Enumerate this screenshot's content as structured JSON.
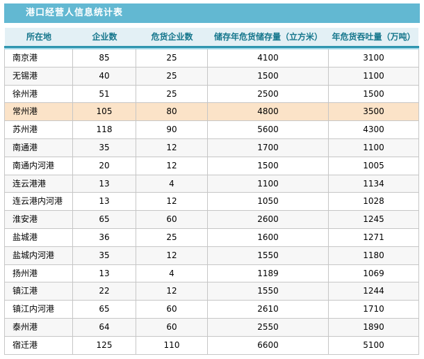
{
  "title": "港口经营人信息统计表",
  "table": {
    "columns": [
      "所在地",
      "企业数",
      "危货企业数",
      "储存年危货储存量（立方米）",
      "年危货吞吐量（万吨）"
    ],
    "rows": [
      {
        "cells": [
          "南京港",
          "85",
          "25",
          "4100",
          "3100"
        ],
        "highlighted": false
      },
      {
        "cells": [
          "无锡港",
          "40",
          "25",
          "1500",
          "1100"
        ],
        "highlighted": false
      },
      {
        "cells": [
          "徐州港",
          "51",
          "25",
          "2500",
          "1500"
        ],
        "highlighted": false
      },
      {
        "cells": [
          "常州港",
          "105",
          "80",
          "4800",
          "3500"
        ],
        "highlighted": true
      },
      {
        "cells": [
          "苏州港",
          "118",
          "90",
          "5600",
          "4300"
        ],
        "highlighted": false
      },
      {
        "cells": [
          "南通港",
          "35",
          "12",
          "1700",
          "1100"
        ],
        "highlighted": false
      },
      {
        "cells": [
          "南通内河港",
          "20",
          "12",
          "1500",
          "1005"
        ],
        "highlighted": false
      },
      {
        "cells": [
          "连云港港",
          "13",
          "4",
          "1100",
          "1134"
        ],
        "highlighted": false
      },
      {
        "cells": [
          "连云港内河港",
          "13",
          "12",
          "1050",
          "1028"
        ],
        "highlighted": false
      },
      {
        "cells": [
          "淮安港",
          "65",
          "60",
          "2600",
          "1245"
        ],
        "highlighted": false
      },
      {
        "cells": [
          "盐城港",
          "36",
          "25",
          "1600",
          "1271"
        ],
        "highlighted": false
      },
      {
        "cells": [
          "盐城内河港",
          "35",
          "12",
          "1550",
          "1180"
        ],
        "highlighted": false
      },
      {
        "cells": [
          "扬州港",
          "13",
          "4",
          "1189",
          "1069"
        ],
        "highlighted": false
      },
      {
        "cells": [
          "镇江港",
          "22",
          "12",
          "1550",
          "1244"
        ],
        "highlighted": false
      },
      {
        "cells": [
          "镇江内河港",
          "65",
          "60",
          "2610",
          "1710"
        ],
        "highlighted": false
      },
      {
        "cells": [
          "泰州港",
          "64",
          "60",
          "2550",
          "1890"
        ],
        "highlighted": false
      },
      {
        "cells": [
          "宿迁港",
          "125",
          "110",
          "6600",
          "5100"
        ],
        "highlighted": false
      }
    ],
    "highlighted_row_label": "常州港"
  },
  "colors": {
    "title_bar_bg": "#62b8d2",
    "title_text": "#ffffff",
    "header_bg": "#e3f0f5",
    "header_text": "#15768c",
    "header_rule_dark": "#2e95af",
    "header_rule_light": "#a3d8e8",
    "row_alt_bg": "#f7f7f7",
    "highlight_row_bg": "#fbe3c8",
    "grid_border": "#c6c6c6",
    "cell_text": "#000000"
  }
}
